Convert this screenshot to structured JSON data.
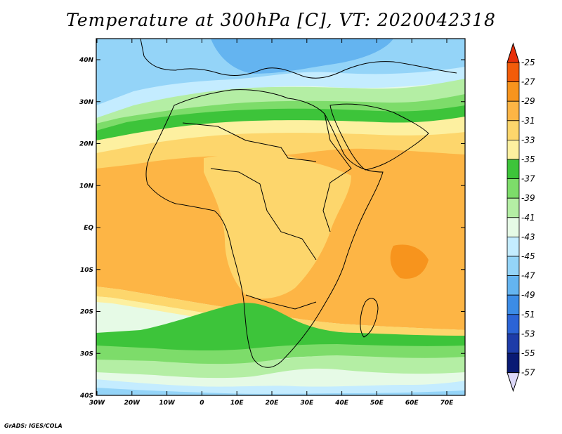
{
  "title": "Temperature at 300hPa [C], VT: 2020042318",
  "credit": "GrADS: IGES/COLA",
  "map": {
    "lat_labels": [
      "40N",
      "30N",
      "20N",
      "10N",
      "EQ",
      "10S",
      "20S",
      "30S",
      "40S"
    ],
    "lon_labels": [
      "30W",
      "20W",
      "10W",
      "0",
      "10E",
      "20E",
      "30E",
      "40E",
      "50E",
      "60E",
      "70E"
    ]
  },
  "colorbar": {
    "labels": [
      "-25",
      "-27",
      "-29",
      "-31",
      "-33",
      "-35",
      "-37",
      "-39",
      "-41",
      "-43",
      "-45",
      "-47",
      "-49",
      "-51",
      "-53",
      "-55",
      "-57"
    ],
    "colors": [
      "#e8300a",
      "#f25c0a",
      "#f7941d",
      "#fdb545",
      "#fdd66c",
      "#fdf0a0",
      "#3dc43a",
      "#7ddc6a",
      "#b4eea4",
      "#e6fae6",
      "#c4ecff",
      "#94d4f8",
      "#64b4f0",
      "#3c8ce6",
      "#2c64d6",
      "#1e3ca8",
      "#0a1a74"
    ]
  }
}
